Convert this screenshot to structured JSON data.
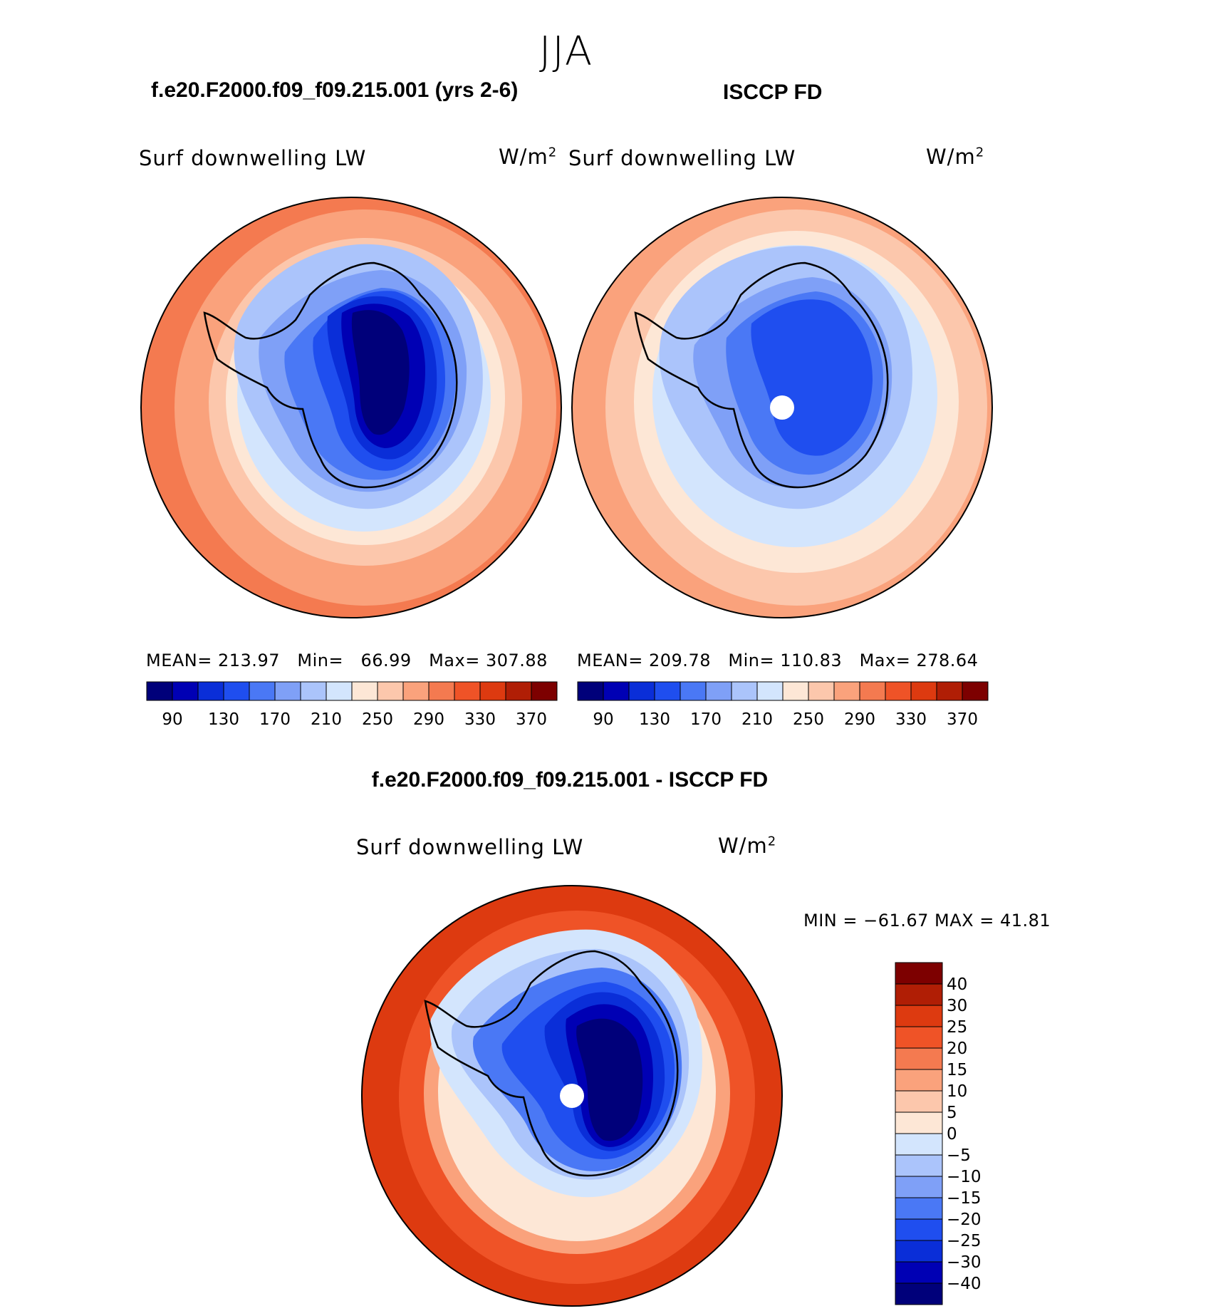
{
  "figure": {
    "season": "JJA"
  },
  "panels": [
    {
      "title": "f.e20.F2000.f09_f09.215.001 (yrs 2-6)",
      "variable": "Surf downwelling LW",
      "units": "W/m",
      "units_exp": "2",
      "stats": {
        "mean_label": "MEAN=",
        "mean": "213.97",
        "min_label": "Min=",
        "min": "66.99",
        "max_label": "Max=",
        "max": "307.88"
      }
    },
    {
      "title": "ISCCP FD",
      "variable": "Surf downwelling LW",
      "units": "W/m",
      "units_exp": "2",
      "stats": {
        "mean_label": "MEAN=",
        "mean": "209.78",
        "min_label": "Min=",
        "min": "110.83",
        "max_label": "Max=",
        "max": "278.64"
      }
    }
  ],
  "difference": {
    "title": "f.e20.F2000.f09_f09.215.001 - ISCCP FD",
    "variable": "Surf downwelling LW",
    "units": "W/m",
    "units_exp": "2",
    "range_text": "MIN = −61.67 MAX =   41.81"
  },
  "colorbars": {
    "abs": {
      "colors": [
        "#00007a",
        "#0000b4",
        "#0a2ed8",
        "#1f4eef",
        "#4a78f5",
        "#7fa0f7",
        "#abc4fb",
        "#d3e5fd",
        "#fde7d6",
        "#fcc7ac",
        "#faa27c",
        "#f47a50",
        "#ef5327",
        "#dd3a10",
        "#b01e05",
        "#7d0000"
      ],
      "tick_labels": [
        "90",
        "130",
        "170",
        "210",
        "250",
        "290",
        "330",
        "370"
      ]
    },
    "diff": {
      "colors": [
        "#00007a",
        "#0000b4",
        "#0a2ed8",
        "#1f4eef",
        "#4a78f5",
        "#7fa0f7",
        "#abc4fb",
        "#d3e5fd",
        "#fde7d6",
        "#fcc7ac",
        "#faa27c",
        "#f47a50",
        "#ef5327",
        "#dd3a10",
        "#b01e05",
        "#7d0000"
      ],
      "tick_labels": [
        "40",
        "30",
        "25",
        "20",
        "15",
        "10",
        "5",
        "0",
        "−5",
        "−10",
        "−15",
        "−20",
        "−25",
        "−30",
        "−40"
      ]
    }
  },
  "map_colors": {
    "ocean_warm": "#f47a50",
    "ocean_mid": "#faa27c",
    "ocean_light": "#fcc7ac",
    "ocean_pale": "#fde7d6",
    "ice_pale": "#d3e5fd",
    "ice_light": "#abc4fb",
    "ice_mid": "#7fa0f7",
    "land_blue": "#4a78f5",
    "land_deep": "#1f4eef",
    "land_core": "#0a2ed8",
    "land_darker": "#0000b4",
    "land_darkest": "#00007a",
    "diff_ocean": "#dd3a10",
    "diff_ocean2": "#ef5327",
    "diff_dark": "#b01e05"
  }
}
